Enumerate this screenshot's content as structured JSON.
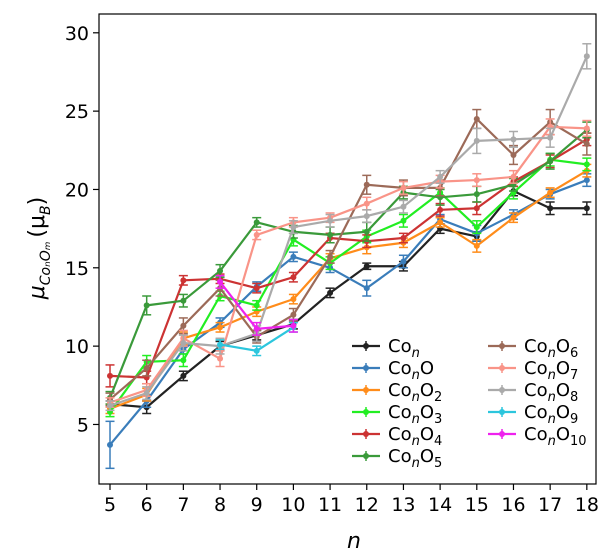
{
  "chart_data": {
    "type": "line",
    "xlabel": "n",
    "ylabel_base": "μ",
    "ylabel_sub": "CoₙOₘ",
    "ylabel_unit_open": "(μ",
    "ylabel_unit_sub": "B",
    "ylabel_unit_close": ")",
    "x_ticks": [
      5,
      6,
      7,
      8,
      9,
      10,
      11,
      12,
      13,
      14,
      15,
      16,
      17,
      18
    ],
    "y_ticks": [
      5,
      10,
      15,
      20,
      25,
      30
    ],
    "xlim": [
      4.7,
      18.25
    ],
    "ylim": [
      1.2,
      31.2
    ],
    "grid": false,
    "legend_position": "lower-right",
    "series": [
      {
        "name": "Co",
        "sub": "n",
        "suffix": "",
        "subsuffix": "",
        "color": "#222222",
        "x": [
          5,
          6,
          7,
          8,
          9,
          10,
          11,
          12,
          13,
          14,
          15,
          16,
          17,
          18
        ],
        "y": [
          6.3,
          6.1,
          8.1,
          10.0,
          10.7,
          11.4,
          13.4,
          15.1,
          15.1,
          17.5,
          17.0,
          19.9,
          18.8,
          18.8
        ],
        "err": [
          0.2,
          0.4,
          0.3,
          0.3,
          0.3,
          0.3,
          0.3,
          0.2,
          0.3,
          0.3,
          0.3,
          0.3,
          0.4,
          0.4
        ]
      },
      {
        "name": "Co",
        "sub": "n",
        "suffix": "O",
        "subsuffix": "",
        "color": "#3a7dba",
        "x": [
          5,
          6,
          7,
          8,
          9,
          10,
          11,
          12,
          13,
          14,
          15,
          16,
          17,
          18
        ],
        "y": [
          3.7,
          6.5,
          9.8,
          11.5,
          13.8,
          15.7,
          15.0,
          13.7,
          15.4,
          18.1,
          17.2,
          18.4,
          19.7,
          20.6
        ],
        "err": [
          1.5,
          0.4,
          0.3,
          0.3,
          0.3,
          0.3,
          0.3,
          0.5,
          0.4,
          0.3,
          0.5,
          0.3,
          0.3,
          0.4
        ]
      },
      {
        "name": "Co",
        "sub": "n",
        "suffix": "O",
        "subsuffix": "2",
        "color": "#ff8c1a",
        "x": [
          5,
          6,
          7,
          8,
          9,
          10,
          11,
          12,
          13,
          14,
          15,
          16,
          17,
          18
        ],
        "y": [
          6.0,
          6.9,
          10.5,
          11.2,
          12.2,
          13.0,
          15.6,
          16.3,
          16.6,
          17.9,
          16.4,
          18.2,
          19.8,
          21.2
        ],
        "err": [
          0.3,
          0.4,
          0.4,
          0.3,
          0.3,
          0.3,
          0.3,
          0.4,
          0.3,
          0.3,
          0.4,
          0.3,
          0.3,
          0.4
        ]
      },
      {
        "name": "Co",
        "sub": "n",
        "suffix": "O",
        "subsuffix": "3",
        "color": "#22ee22",
        "x": [
          5,
          6,
          7,
          8,
          9,
          10,
          11,
          12,
          13,
          14,
          15,
          16,
          17,
          18
        ],
        "y": [
          5.8,
          9.0,
          9.1,
          13.2,
          12.6,
          16.8,
          15.3,
          17.0,
          18.0,
          19.8,
          17.6,
          19.8,
          21.9,
          21.6
        ],
        "err": [
          0.3,
          0.4,
          0.4,
          0.3,
          0.3,
          0.4,
          0.4,
          0.4,
          0.4,
          0.3,
          0.4,
          0.4,
          0.4,
          0.4
        ]
      },
      {
        "name": "Co",
        "sub": "n",
        "suffix": "O",
        "subsuffix": "4",
        "color": "#cc3333",
        "x": [
          5,
          6,
          7,
          8,
          9,
          10,
          11,
          12,
          13,
          14,
          15,
          16,
          17,
          18
        ],
        "y": [
          8.1,
          8.0,
          14.2,
          14.3,
          13.7,
          14.4,
          16.9,
          16.7,
          16.9,
          18.7,
          18.8,
          20.5,
          21.8,
          23.2
        ],
        "err": [
          0.7,
          0.4,
          0.3,
          0.3,
          0.3,
          0.3,
          0.3,
          0.4,
          0.3,
          0.4,
          0.4,
          0.3,
          0.4,
          0.4
        ]
      },
      {
        "name": "Co",
        "sub": "n",
        "suffix": "O",
        "subsuffix": "5",
        "color": "#3a9a3a",
        "x": [
          5,
          6,
          7,
          8,
          9,
          10,
          11,
          12,
          13,
          14,
          15,
          16,
          17,
          18
        ],
        "y": [
          6.7,
          12.6,
          12.9,
          14.8,
          17.9,
          17.3,
          17.1,
          17.3,
          19.8,
          19.5,
          19.7,
          20.3,
          21.8,
          23.8
        ],
        "err": [
          0.4,
          0.6,
          0.4,
          0.4,
          0.3,
          0.4,
          0.5,
          0.6,
          0.4,
          0.5,
          0.5,
          0.4,
          0.5,
          0.5
        ]
      },
      {
        "name": "Co",
        "sub": "n",
        "suffix": "O",
        "subsuffix": "6",
        "color": "#9c6a58",
        "x": [
          5,
          6,
          7,
          8,
          9,
          10,
          11,
          12,
          13,
          14,
          15,
          16,
          17,
          18
        ],
        "y": [
          6.6,
          8.6,
          11.3,
          13.7,
          10.6,
          12.0,
          15.7,
          20.3,
          20.1,
          20.1,
          24.5,
          22.2,
          24.3,
          22.9
        ],
        "err": [
          0.4,
          0.5,
          0.5,
          0.5,
          0.4,
          0.4,
          0.4,
          0.6,
          0.5,
          0.5,
          0.6,
          0.6,
          0.8,
          0.7
        ]
      },
      {
        "name": "Co",
        "sub": "n",
        "suffix": "O",
        "subsuffix": "7",
        "color": "#f99488",
        "x": [
          5,
          6,
          7,
          8,
          9,
          10,
          11,
          12,
          13,
          14,
          15,
          16,
          17,
          18
        ],
        "y": [
          6.4,
          7.2,
          10.5,
          9.2,
          17.1,
          17.9,
          18.2,
          19.1,
          20.1,
          20.5,
          20.6,
          20.8,
          24.0,
          23.9
        ],
        "err": [
          0.3,
          0.4,
          0.5,
          0.5,
          0.3,
          0.3,
          0.3,
          0.4,
          0.4,
          0.4,
          0.4,
          0.4,
          0.5,
          0.5
        ]
      },
      {
        "name": "Co",
        "sub": "n",
        "suffix": "O",
        "subsuffix": "8",
        "color": "#aaaaaa",
        "x": [
          5,
          6,
          7,
          8,
          9,
          10,
          11,
          12,
          13,
          14,
          15,
          16,
          17,
          18
        ],
        "y": [
          6.2,
          7.0,
          10.2,
          10.0,
          10.8,
          17.6,
          18.0,
          18.3,
          18.9,
          20.8,
          23.1,
          23.2,
          23.3,
          28.5
        ],
        "err": [
          0.3,
          0.4,
          0.5,
          0.5,
          0.5,
          0.4,
          0.4,
          0.4,
          0.4,
          0.4,
          0.8,
          0.5,
          0.6,
          0.8
        ]
      },
      {
        "name": "Co",
        "sub": "n",
        "suffix": "O",
        "subsuffix": "9",
        "color": "#2cc6dd",
        "x": [
          8,
          9,
          10
        ],
        "y": [
          10.1,
          9.7,
          11.2
        ],
        "err": [
          0.3,
          0.3,
          0.3
        ]
      },
      {
        "name": "Co",
        "sub": "n",
        "suffix": "O",
        "subsuffix": "10",
        "color": "#ee22ee",
        "x": [
          8,
          9,
          10
        ],
        "y": [
          14.1,
          11.1,
          11.3
        ],
        "err": [
          0.4,
          0.4,
          0.4
        ]
      }
    ]
  }
}
